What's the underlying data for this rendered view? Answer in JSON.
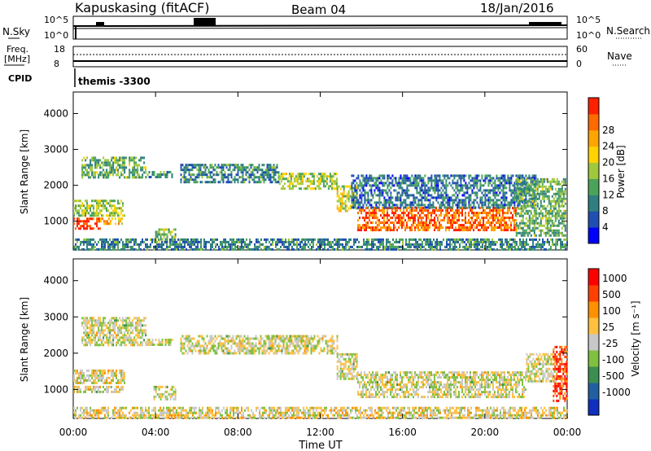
{
  "header": {
    "station": "Kapuskasing (fitACF)",
    "beam": "Beam 04",
    "date": "18/Jan/2016"
  },
  "top_panels": {
    "nsky_label": "N.Sky",
    "nsky_ticks": [
      "10^5",
      "10^0"
    ],
    "nsearch_label": "N.Search",
    "nsearch_ticks": [
      "10^5",
      "10^0"
    ],
    "freq_label": "Freq.",
    "freq_unit": "[MHz]",
    "freq_ticks": [
      "18",
      "8"
    ],
    "nave_label": "Nave",
    "nave_ticks": [
      "60",
      "0"
    ],
    "cpid_label": "CPID",
    "cpid_value": "themis -3300"
  },
  "chart_data": [
    {
      "type": "heatmap",
      "name": "power",
      "ylabel": "Slant Range [km]",
      "ylim": [
        200,
        4600
      ],
      "yticks": [
        "1000",
        "2000",
        "3000",
        "4000"
      ],
      "colorbar": {
        "label": "Power [dB]",
        "ticks": [
          "4",
          "8",
          "12",
          "16",
          "20",
          "24",
          "28"
        ],
        "colors": [
          "#0000ff",
          "#1f4fb0",
          "#2f7f7f",
          "#4ba35a",
          "#a0c83c",
          "#ffd200",
          "#ffa500",
          "#ff6a00",
          "#ff2000"
        ]
      },
      "regions": [
        {
          "t0": 0.0,
          "t1": 2.5,
          "r0": 1150,
          "r1": 1600,
          "level": 0.5
        },
        {
          "t0": 0.0,
          "t1": 1.3,
          "r0": 800,
          "r1": 1100,
          "level": 0.95
        },
        {
          "t0": 1.3,
          "t1": 2.4,
          "r0": 950,
          "r1": 1100,
          "level": 0.7
        },
        {
          "t0": 0.4,
          "t1": 3.5,
          "r0": 2200,
          "r1": 2800,
          "level": 0.4
        },
        {
          "t0": 3.5,
          "t1": 4.8,
          "r0": 2200,
          "r1": 2400,
          "level": 0.35
        },
        {
          "t0": 3.9,
          "t1": 5.0,
          "r0": 400,
          "r1": 800,
          "level": 0.45
        },
        {
          "t0": 5.2,
          "t1": 10.0,
          "r0": 2100,
          "r1": 2600,
          "level": 0.3
        },
        {
          "t0": 10.0,
          "t1": 12.8,
          "r0": 1900,
          "r1": 2350,
          "level": 0.5
        },
        {
          "t0": 12.8,
          "t1": 13.8,
          "r0": 1300,
          "r1": 2000,
          "level": 0.55
        },
        {
          "t0": 13.8,
          "t1": 21.5,
          "r0": 750,
          "r1": 1400,
          "level": 0.85
        },
        {
          "t0": 13.5,
          "t1": 22.5,
          "r0": 1400,
          "r1": 2300,
          "level": 0.25
        },
        {
          "t0": 21.5,
          "t1": 23.9,
          "r0": 600,
          "r1": 2200,
          "level": 0.4
        },
        {
          "t0": 0.0,
          "t1": 24.0,
          "r0": 220,
          "r1": 520,
          "level": 0.3
        }
      ]
    },
    {
      "type": "heatmap",
      "name": "velocity",
      "ylabel": "Slant Range [km]",
      "ylim": [
        200,
        4600
      ],
      "yticks": [
        "1000",
        "2000",
        "3000",
        "4000"
      ],
      "colorbar": {
        "label": "Velocity [m s⁻¹]",
        "ticks": [
          "1000",
          "500",
          "100",
          "25",
          "-25",
          "-100",
          "-500",
          "-1000"
        ],
        "colors": [
          "#1030c0",
          "#2060a0",
          "#3a8f50",
          "#80c040",
          "#c8c8c8",
          "#ffc040",
          "#ff9000",
          "#ff4000",
          "#ff0000"
        ]
      },
      "regions": [
        {
          "t0": 0.0,
          "t1": 2.5,
          "r0": 1150,
          "r1": 1550,
          "level": 0.55
        },
        {
          "t0": 0.0,
          "t1": 2.4,
          "r0": 900,
          "r1": 1100,
          "level": 0.5
        },
        {
          "t0": 0.4,
          "t1": 3.5,
          "r0": 2200,
          "r1": 3000,
          "level": 0.5
        },
        {
          "t0": 3.5,
          "t1": 4.8,
          "r0": 2200,
          "r1": 2400,
          "level": 0.5
        },
        {
          "t0": 3.9,
          "t1": 5.0,
          "r0": 700,
          "r1": 1100,
          "level": 0.5
        },
        {
          "t0": 5.2,
          "t1": 12.8,
          "r0": 2000,
          "r1": 2500,
          "level": 0.5
        },
        {
          "t0": 12.8,
          "t1": 13.8,
          "r0": 1300,
          "r1": 2000,
          "level": 0.5
        },
        {
          "t0": 13.8,
          "t1": 22.0,
          "r0": 800,
          "r1": 1500,
          "level": 0.5
        },
        {
          "t0": 22.0,
          "t1": 23.5,
          "r0": 1200,
          "r1": 2000,
          "level": 0.5
        },
        {
          "t0": 23.3,
          "t1": 24.0,
          "r0": 700,
          "r1": 2200,
          "level": 0.85
        },
        {
          "t0": 0.0,
          "t1": 24.0,
          "r0": 220,
          "r1": 520,
          "level": 0.55
        }
      ]
    }
  ],
  "x_axis": {
    "xlim": [
      0,
      24
    ],
    "ticks": [
      "00:00",
      "04:00",
      "08:00",
      "12:00",
      "16:00",
      "20:00",
      "00:00"
    ],
    "label": "Time UT"
  }
}
